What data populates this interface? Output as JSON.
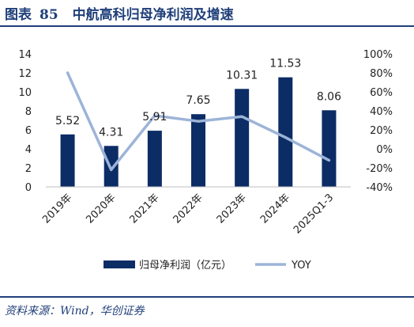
{
  "figure": {
    "title_label": "图表",
    "title_number": "85",
    "title_text": "中航高科归母净利润及增速",
    "source": "资料来源：Wind，华创证券"
  },
  "colors": {
    "bar": "#0c2c66",
    "line": "#9db4d8",
    "rule": "#1f3f7a"
  },
  "chart_data": {
    "type": "bar",
    "categories": [
      "2019年",
      "2020年",
      "2021年",
      "2022年",
      "2023年",
      "2024年",
      "2025Q1-3"
    ],
    "series": [
      {
        "name": "归母净利润（亿元）",
        "type": "bar",
        "axis": "left",
        "values": [
          5.52,
          4.31,
          5.91,
          7.65,
          10.31,
          11.53,
          8.06
        ]
      },
      {
        "name": "YOY",
        "type": "line",
        "axis": "right",
        "values": [
          80,
          -22,
          35,
          29,
          34,
          12,
          -12
        ]
      }
    ],
    "data_labels": [
      "5.52",
      "4.31",
      "5.91",
      "7.65",
      "10.31",
      "11.53",
      "8.06"
    ],
    "left_axis": {
      "ylim": [
        0,
        14
      ],
      "ticks": [
        "0",
        "2",
        "4",
        "6",
        "8",
        "10",
        "12",
        "14"
      ]
    },
    "right_axis": {
      "ylim": [
        -40,
        100
      ],
      "ticks": [
        "-40%",
        "-20%",
        "0%",
        "20%",
        "40%",
        "60%",
        "80%",
        "100%"
      ]
    },
    "legend_position": "bottom",
    "grid": false
  }
}
